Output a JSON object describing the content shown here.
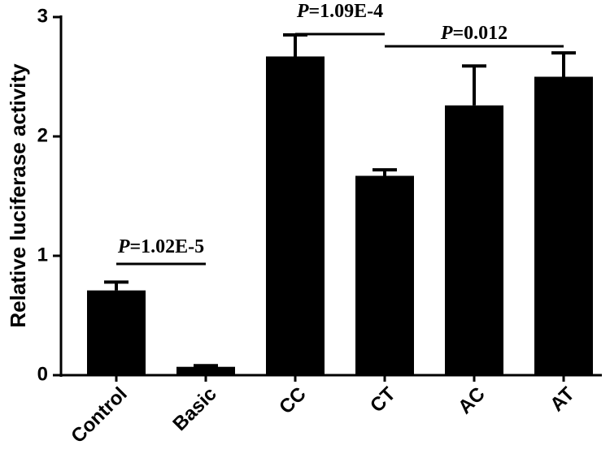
{
  "chart_data": {
    "type": "bar",
    "y_label": "Relative luciferase activity",
    "categories": [
      "Control",
      "Basic",
      "CC",
      "CT",
      "AC",
      "AT"
    ],
    "values": [
      0.71,
      0.07,
      2.67,
      1.67,
      2.26,
      2.5
    ],
    "errors": [
      0.07,
      0.01,
      0.18,
      0.05,
      0.33,
      0.2
    ],
    "color": "#000000",
    "ylim": [
      0,
      3
    ],
    "yticks": [
      0,
      1,
      2,
      3
    ],
    "annotations": [
      {
        "italic": "P",
        "text": "=1.02E-5"
      },
      {
        "italic": "P",
        "text": "=1.09E-4"
      },
      {
        "italic": "P",
        "text": "=0.012"
      }
    ]
  }
}
